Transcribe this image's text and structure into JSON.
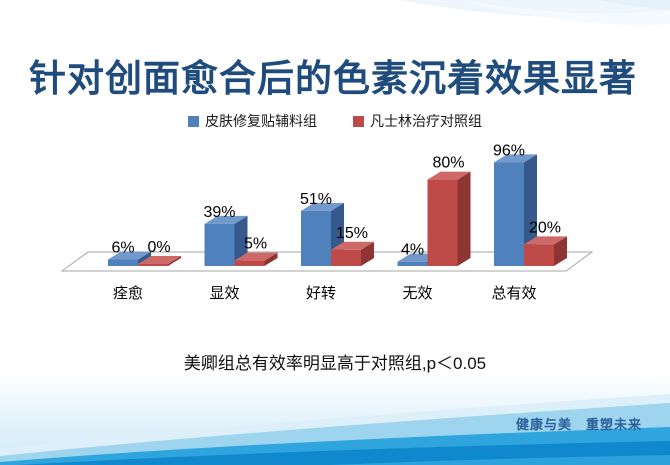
{
  "slide": {
    "title": "针对创面愈合后的色素沉着效果显著",
    "note": "美卿组总有效率明显高于对照组,p＜0.05",
    "footer_slogan": "健康与美　重塑未来"
  },
  "colors": {
    "title_text": "#1F4C7C",
    "footer_text": "#2A6099",
    "floor_stroke": "#A6A6A6",
    "wave_pale": "#DDF0FA",
    "wave_light": "#9FD4EF",
    "wave_medium": "#2FA4DD",
    "wave_dark": "#0F88CE",
    "wave_bottom_strip": "#2CA1DB"
  },
  "chart_data": {
    "type": "bar",
    "subtype": "3d-clustered-column",
    "categories": [
      "痊愈",
      "显效",
      "好转",
      "无效",
      "总有效"
    ],
    "series": [
      {
        "name": "皮肤修复贴辅料组",
        "color": "#4F81BD",
        "color_dark": "#36598C",
        "color_light": "#7299CC",
        "values": [
          6,
          39,
          51,
          4,
          96
        ]
      },
      {
        "name": "凡士林治疗对照组",
        "color": "#BE4B48",
        "color_dark": "#8E3533",
        "color_light": "#CD6A67",
        "values": [
          0,
          5,
          15,
          80,
          20
        ]
      }
    ],
    "value_unit": "%",
    "data_label_format": "{v}%",
    "data_labels_shown": [
      "6%",
      "39%",
      "51%",
      "4%",
      "96%",
      "0%",
      "5%",
      "15%",
      "80%",
      "20%"
    ],
    "ylim": [
      0,
      100
    ],
    "legend_position": "top",
    "axes_visible": false,
    "gridlines": false,
    "floor_visible": true
  }
}
